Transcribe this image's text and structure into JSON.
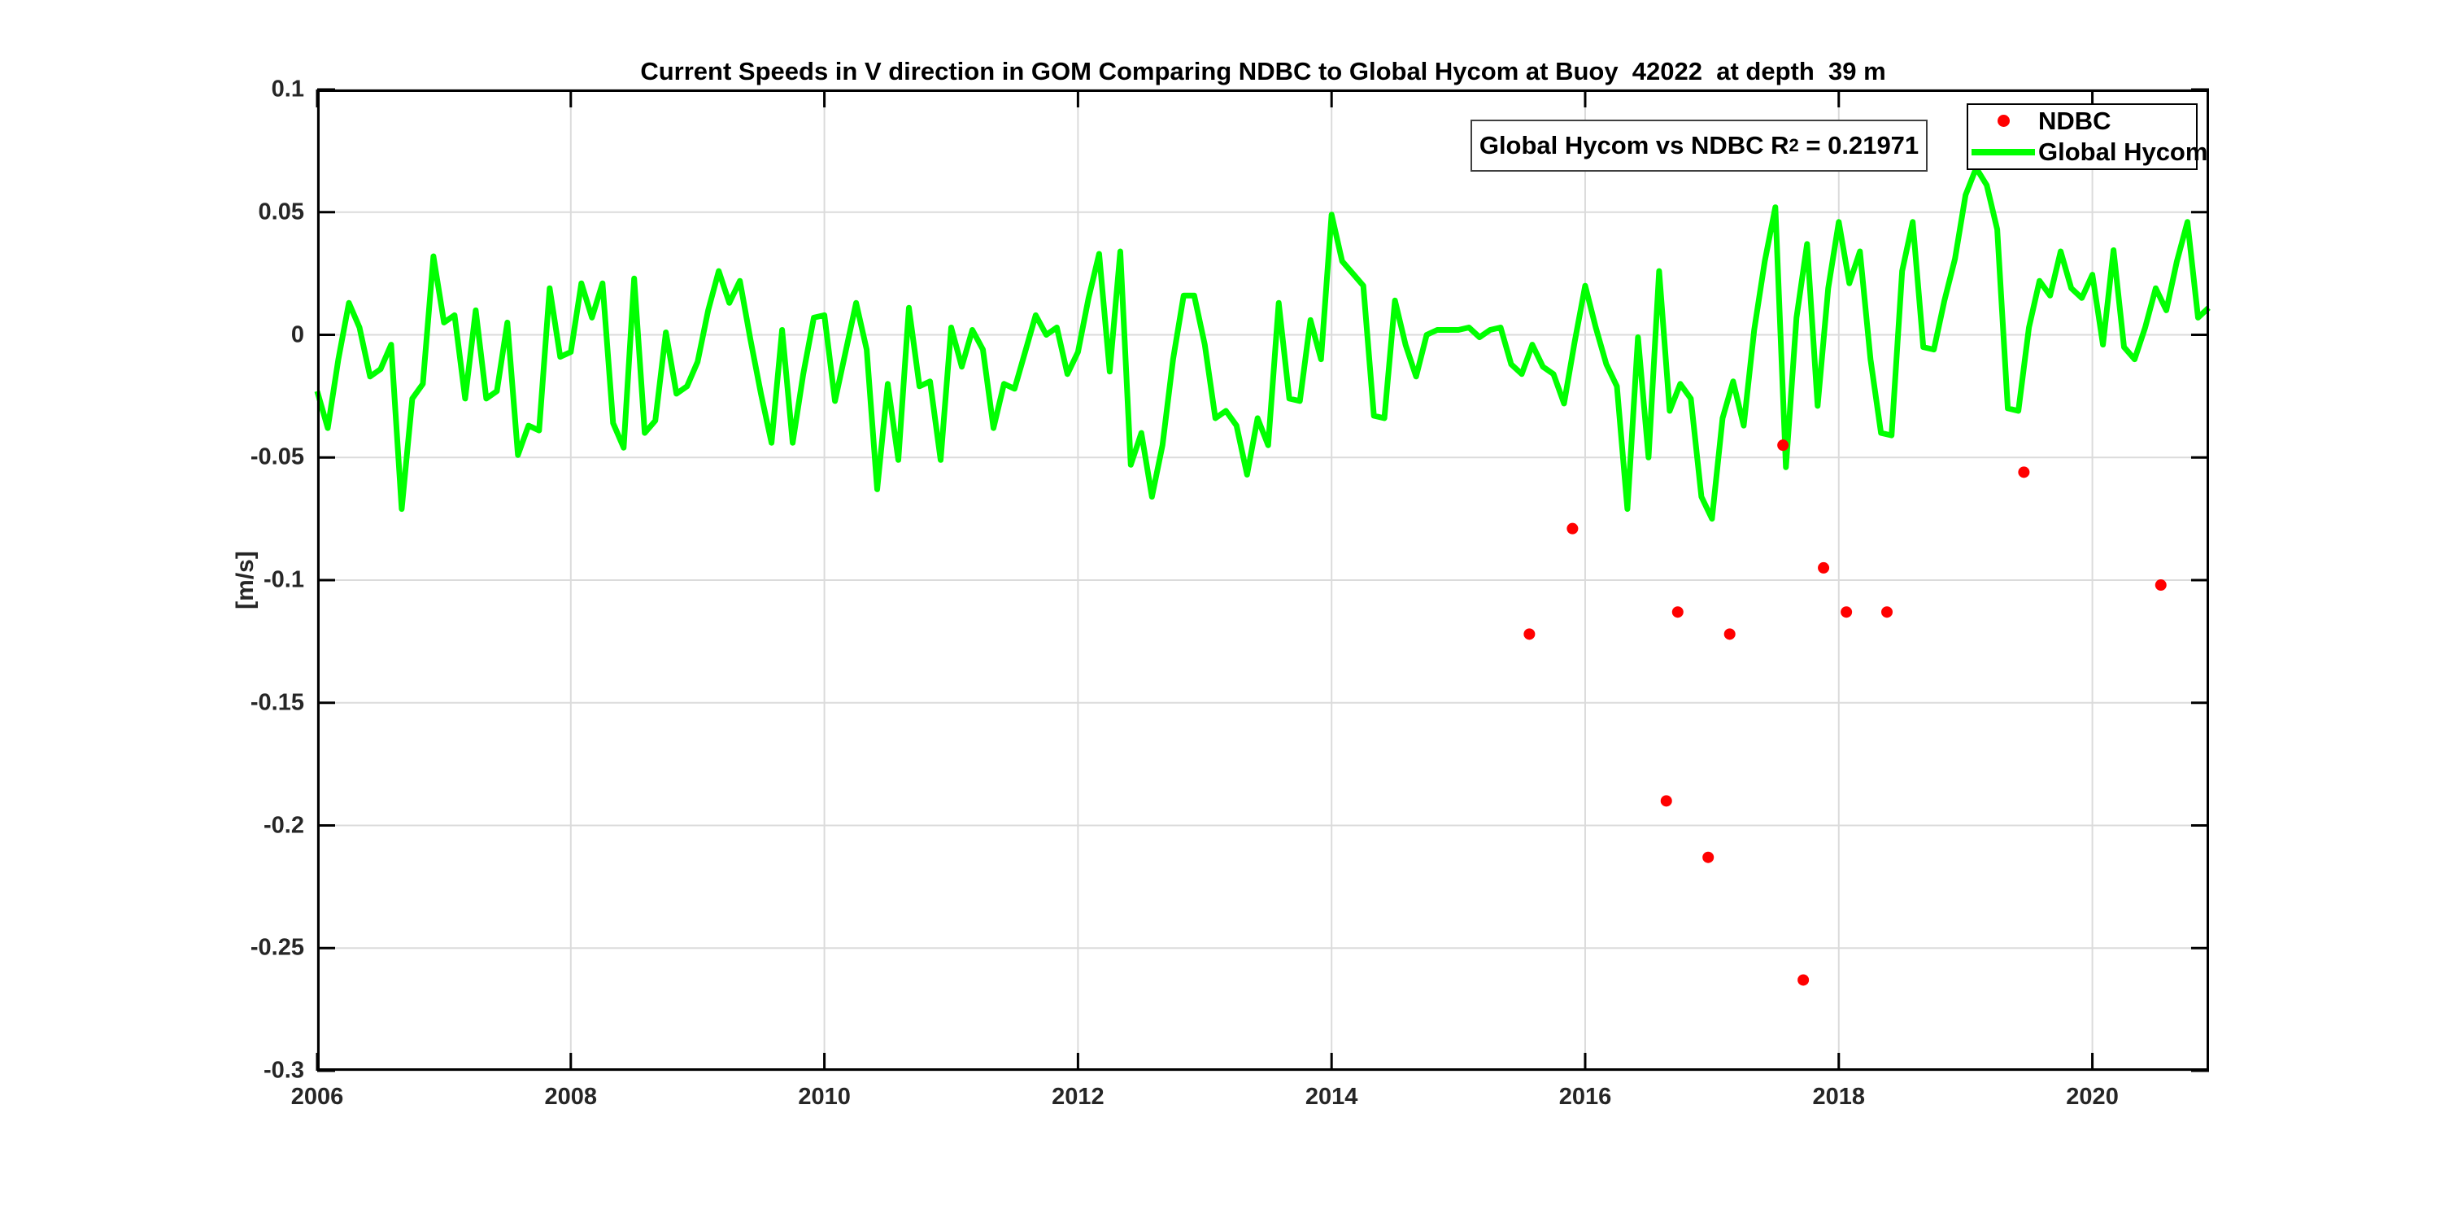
{
  "title": "Current Speeds in V direction in GOM Comparing NDBC to Global Hycom at Buoy  42022  at depth  39 m",
  "annotation": {
    "prefix": "Global Hycom vs NDBC R",
    "superscript": "2",
    "suffix": " = 0.21971"
  },
  "legend": {
    "items": [
      {
        "label": "NDBC",
        "marker": "red-dot",
        "color": "#ff0000"
      },
      {
        "label": "Global Hycom",
        "marker": "green-line",
        "color": "#00ff00"
      }
    ]
  },
  "colors": {
    "ndbc": "#ff0000",
    "hycom": "#00ff00",
    "axis": "#000000",
    "grid": "#dbdbdb",
    "tick_text": "#262626",
    "background": "#ffffff"
  },
  "chart_data": {
    "type": "line+scatter",
    "title": "Current Speeds in V direction in GOM Comparing NDBC to Global Hycom at Buoy  42022  at depth  39 m",
    "xlabel": "",
    "ylabel": "[m/s]",
    "xlim": [
      2006,
      2020.92
    ],
    "ylim": [
      -0.3,
      0.1
    ],
    "xticks": [
      2006,
      2008,
      2010,
      2012,
      2014,
      2016,
      2018,
      2020
    ],
    "xtick_labels": [
      "2006",
      "2008",
      "2010",
      "2012",
      "2014",
      "2016",
      "2018",
      "2020"
    ],
    "yticks": [
      0.1,
      0.05,
      0,
      -0.05,
      -0.1,
      -0.15,
      -0.2,
      -0.25,
      -0.3
    ],
    "ytick_labels": [
      "0.1",
      "0.05",
      "0",
      "-0.05",
      "-0.1",
      "-0.15",
      "-0.2",
      "-0.25",
      "-0.3"
    ],
    "grid": true,
    "legend_position": "top-right",
    "series": [
      {
        "name": "NDBC",
        "type": "scatter",
        "color": "#ff0000",
        "marker_radius": 7,
        "points": [
          [
            2015.56,
            -0.122
          ],
          [
            2015.9,
            -0.079
          ],
          [
            2016.64,
            -0.19
          ],
          [
            2016.73,
            -0.113
          ],
          [
            2016.97,
            -0.213
          ],
          [
            2017.14,
            -0.122
          ],
          [
            2017.56,
            -0.045
          ],
          [
            2017.72,
            -0.263
          ],
          [
            2017.88,
            -0.095
          ],
          [
            2018.06,
            -0.113
          ],
          [
            2018.38,
            -0.113
          ],
          [
            2019.46,
            -0.056
          ],
          [
            2020.54,
            -0.102
          ]
        ]
      },
      {
        "name": "Global Hycom",
        "type": "line",
        "color": "#00ff00",
        "line_width": 7,
        "x_start": 2006.0,
        "x_step_years": 0.0833333,
        "values": [
          -0.023,
          -0.038,
          -0.01,
          0.013,
          0.003,
          -0.017,
          -0.014,
          -0.004,
          -0.071,
          -0.026,
          -0.02,
          0.032,
          0.005,
          0.008,
          -0.026,
          0.01,
          -0.026,
          -0.023,
          0.005,
          -0.049,
          -0.037,
          -0.039,
          0.019,
          -0.009,
          -0.007,
          0.021,
          0.007,
          0.021,
          -0.036,
          -0.046,
          0.023,
          -0.04,
          -0.035,
          0.001,
          -0.024,
          -0.021,
          -0.011,
          0.01,
          0.026,
          0.013,
          0.022,
          -0.002,
          -0.024,
          -0.044,
          0.002,
          -0.044,
          -0.016,
          0.007,
          0.008,
          -0.027,
          -0.007,
          0.013,
          -0.006,
          -0.063,
          -0.02,
          -0.051,
          0.011,
          -0.021,
          -0.019,
          -0.051,
          0.003,
          -0.013,
          0.002,
          -0.006,
          -0.038,
          -0.02,
          -0.022,
          -0.007,
          0.008,
          0.0,
          0.003,
          -0.016,
          -0.007,
          0.015,
          0.033,
          -0.015,
          0.034,
          -0.053,
          -0.04,
          -0.066,
          -0.045,
          -0.01,
          0.016,
          0.016,
          -0.004,
          -0.034,
          -0.031,
          -0.037,
          -0.057,
          -0.034,
          -0.045,
          0.013,
          -0.026,
          -0.027,
          0.006,
          -0.01,
          0.049,
          0.03,
          0.025,
          0.02,
          -0.033,
          -0.034,
          0.014,
          -0.004,
          -0.017,
          0.0,
          0.002,
          0.002,
          0.002,
          0.003,
          -0.001,
          0.002,
          0.003,
          -0.012,
          -0.016,
          -0.004,
          -0.013,
          -0.016,
          -0.028,
          -0.003,
          0.02,
          0.003,
          -0.012,
          -0.021,
          -0.071,
          -0.001,
          -0.05,
          0.026,
          -0.031,
          -0.02,
          -0.026,
          -0.066,
          -0.075,
          -0.034,
          -0.019,
          -0.037,
          0.002,
          0.03,
          0.052,
          -0.054,
          0.007,
          0.037,
          -0.029,
          0.019,
          0.046,
          0.021,
          0.034,
          -0.01,
          -0.04,
          -0.041,
          0.026,
          0.046,
          -0.005,
          -0.006,
          0.014,
          0.031,
          0.057,
          0.068,
          0.061,
          0.043,
          -0.03,
          -0.031,
          0.003,
          0.022,
          0.016,
          0.034,
          0.019,
          0.015,
          0.0245,
          -0.004,
          0.0345,
          -0.005,
          -0.01,
          0.003,
          0.019,
          0.01,
          0.03,
          0.046,
          0.007,
          0.011
        ]
      }
    ]
  }
}
